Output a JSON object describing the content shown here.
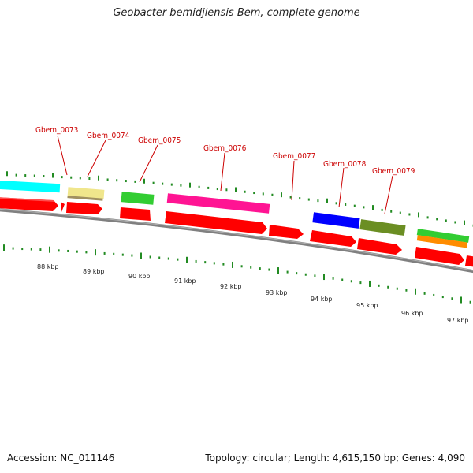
{
  "title": "Geobacter bemidjiensis Bem, complete genome",
  "footer": {
    "accession": "Accession: NC_011146",
    "summary": "Topology: circular; Length: 4,615,150 bp; Genes: 4,090"
  },
  "scale": {
    "labels": [
      "88 kbp",
      "89 kbp",
      "90 kbp",
      "91 kbp",
      "92 kbp",
      "93 kbp",
      "94 kbp",
      "95 kbp",
      "96 kbp",
      "97 kbp"
    ]
  },
  "colors": {
    "cds": "#ff0000",
    "backbone": "#808080",
    "tick": "#228b22",
    "label": "#cc0000"
  },
  "genes": [
    {
      "locus_tag": "Gbem_0073"
    },
    {
      "locus_tag": "Gbem_0074"
    },
    {
      "locus_tag": "Gbem_0075"
    },
    {
      "locus_tag": "Gbem_0076"
    },
    {
      "locus_tag": "Gbem_0077"
    },
    {
      "locus_tag": "Gbem_0078"
    },
    {
      "locus_tag": "Gbem_0079"
    }
  ],
  "cog_blocks": [
    {
      "color": "#00ffff"
    },
    {
      "color": "#f0e68c"
    },
    {
      "color": "#32cd32"
    },
    {
      "color": "#ff1493"
    },
    {
      "color": "#0000ff"
    },
    {
      "color": "#6b8e23"
    },
    {
      "color": "#32cd32"
    },
    {
      "color": "#ff8c00"
    }
  ]
}
